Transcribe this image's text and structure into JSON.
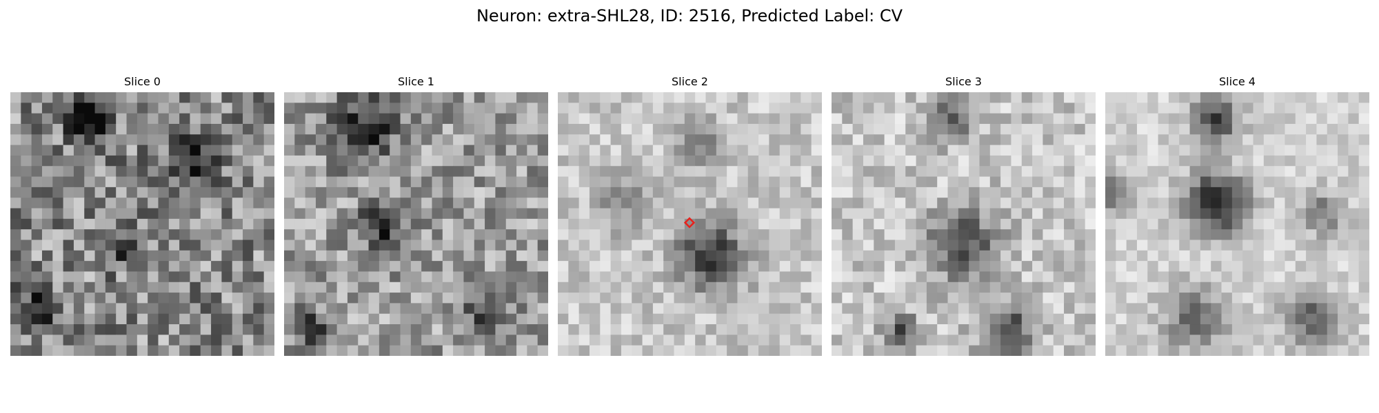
{
  "figure": {
    "title": "Neuron: extra-SHL28, ID: 2516, Predicted Label: CV"
  },
  "slices": [
    {
      "title": "Slice 0"
    },
    {
      "title": "Slice 1"
    },
    {
      "title": "Slice 2",
      "has_marker": true
    },
    {
      "title": "Slice 3"
    },
    {
      "title": "Slice 4"
    }
  ],
  "colors": {
    "marker": "#e8211c",
    "background": "#ffffff"
  }
}
